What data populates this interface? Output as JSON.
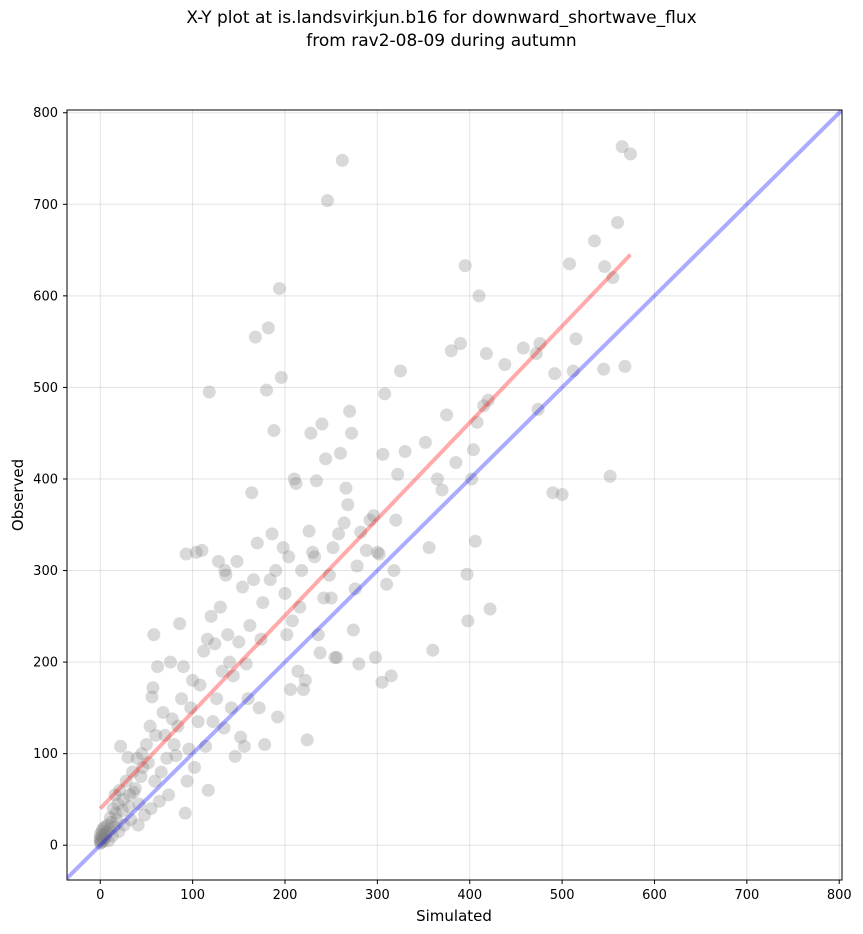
{
  "chart_data": {
    "type": "scatter",
    "title_line1": "X-Y plot at is.landsvirkjun.b16 for downward_shortwave_flux",
    "title_line2": "from rav2-08-09 during autumn",
    "xlabel": "Simulated",
    "ylabel": "Observed",
    "xlim": [
      -36,
      803
    ],
    "ylim": [
      -38,
      803
    ],
    "xticks": [
      0,
      100,
      200,
      300,
      400,
      500,
      600,
      700,
      800
    ],
    "yticks": [
      0,
      100,
      200,
      300,
      400,
      500,
      600,
      700,
      800
    ],
    "grid": true,
    "identity_line": {
      "color": "#0000ff",
      "from": [
        -36,
        -36
      ],
      "to": [
        803,
        803
      ]
    },
    "fit_line": {
      "color": "#ff0000",
      "from": [
        0,
        40
      ],
      "to": [
        574,
        645
      ]
    },
    "colors": {
      "point": "#808080",
      "identity": "#0000ff",
      "fit": "#ff0000"
    },
    "points": [
      [
        0,
        2
      ],
      [
        0,
        5
      ],
      [
        0,
        8
      ],
      [
        0,
        12
      ],
      [
        1,
        3
      ],
      [
        1,
        6
      ],
      [
        2,
        10
      ],
      [
        2,
        15
      ],
      [
        3,
        4
      ],
      [
        3,
        18
      ],
      [
        4,
        7
      ],
      [
        5,
        12
      ],
      [
        5,
        20
      ],
      [
        6,
        9
      ],
      [
        7,
        14
      ],
      [
        8,
        22
      ],
      [
        9,
        5
      ],
      [
        10,
        17
      ],
      [
        11,
        30
      ],
      [
        12,
        25
      ],
      [
        13,
        10
      ],
      [
        14,
        40
      ],
      [
        15,
        20
      ],
      [
        16,
        55
      ],
      [
        17,
        35
      ],
      [
        18,
        28
      ],
      [
        19,
        45
      ],
      [
        20,
        15
      ],
      [
        21,
        60
      ],
      [
        22,
        108
      ],
      [
        24,
        38
      ],
      [
        25,
        50
      ],
      [
        26,
        22
      ],
      [
        28,
        70
      ],
      [
        30,
        96
      ],
      [
        31,
        42
      ],
      [
        32,
        55
      ],
      [
        33,
        28
      ],
      [
        35,
        80
      ],
      [
        36,
        58
      ],
      [
        38,
        62
      ],
      [
        40,
        95
      ],
      [
        41,
        22
      ],
      [
        42,
        45
      ],
      [
        44,
        75
      ],
      [
        45,
        100
      ],
      [
        46,
        85
      ],
      [
        48,
        33
      ],
      [
        50,
        110
      ],
      [
        52,
        90
      ],
      [
        54,
        130
      ],
      [
        55,
        40
      ],
      [
        56,
        162
      ],
      [
        57,
        172
      ],
      [
        58,
        230
      ],
      [
        59,
        70
      ],
      [
        60,
        120
      ],
      [
        62,
        195
      ],
      [
        64,
        48
      ],
      [
        66,
        80
      ],
      [
        68,
        145
      ],
      [
        70,
        120
      ],
      [
        72,
        95
      ],
      [
        74,
        55
      ],
      [
        76,
        200
      ],
      [
        78,
        138
      ],
      [
        80,
        110
      ],
      [
        82,
        98
      ],
      [
        84,
        130
      ],
      [
        86,
        242
      ],
      [
        88,
        160
      ],
      [
        90,
        195
      ],
      [
        92,
        35
      ],
      [
        93,
        318
      ],
      [
        94,
        70
      ],
      [
        96,
        105
      ],
      [
        98,
        150
      ],
      [
        100,
        180
      ],
      [
        102,
        85
      ],
      [
        104,
        320
      ],
      [
        106,
        135
      ],
      [
        108,
        175
      ],
      [
        110,
        322
      ],
      [
        112,
        212
      ],
      [
        114,
        108
      ],
      [
        116,
        225
      ],
      [
        117,
        60
      ],
      [
        118,
        495
      ],
      [
        120,
        250
      ],
      [
        122,
        135
      ],
      [
        124,
        220
      ],
      [
        126,
        160
      ],
      [
        128,
        310
      ],
      [
        130,
        260
      ],
      [
        132,
        190
      ],
      [
        134,
        128
      ],
      [
        135,
        300
      ],
      [
        136,
        295
      ],
      [
        138,
        230
      ],
      [
        140,
        200
      ],
      [
        142,
        150
      ],
      [
        144,
        185
      ],
      [
        146,
        97
      ],
      [
        148,
        310
      ],
      [
        150,
        222
      ],
      [
        152,
        118
      ],
      [
        154,
        282
      ],
      [
        156,
        108
      ],
      [
        158,
        198
      ],
      [
        160,
        160
      ],
      [
        162,
        240
      ],
      [
        164,
        385
      ],
      [
        166,
        290
      ],
      [
        168,
        555
      ],
      [
        170,
        330
      ],
      [
        172,
        150
      ],
      [
        174,
        225
      ],
      [
        176,
        265
      ],
      [
        178,
        110
      ],
      [
        180,
        497
      ],
      [
        182,
        565
      ],
      [
        184,
        290
      ],
      [
        186,
        340
      ],
      [
        188,
        453
      ],
      [
        190,
        300
      ],
      [
        192,
        140
      ],
      [
        194,
        608
      ],
      [
        196,
        511
      ],
      [
        198,
        325
      ],
      [
        200,
        275
      ],
      [
        202,
        230
      ],
      [
        204,
        315
      ],
      [
        206,
        170
      ],
      [
        208,
        245
      ],
      [
        210,
        400
      ],
      [
        212,
        395
      ],
      [
        214,
        190
      ],
      [
        216,
        260
      ],
      [
        218,
        300
      ],
      [
        220,
        170
      ],
      [
        222,
        180
      ],
      [
        224,
        115
      ],
      [
        226,
        343
      ],
      [
        228,
        450
      ],
      [
        230,
        320
      ],
      [
        232,
        315
      ],
      [
        234,
        398
      ],
      [
        236,
        230
      ],
      [
        238,
        210
      ],
      [
        240,
        460
      ],
      [
        242,
        270
      ],
      [
        244,
        422
      ],
      [
        246,
        704
      ],
      [
        248,
        295
      ],
      [
        250,
        270
      ],
      [
        252,
        325
      ],
      [
        254,
        205
      ],
      [
        256,
        205
      ],
      [
        258,
        340
      ],
      [
        260,
        428
      ],
      [
        262,
        748
      ],
      [
        264,
        352
      ],
      [
        266,
        390
      ],
      [
        268,
        372
      ],
      [
        270,
        474
      ],
      [
        272,
        450
      ],
      [
        274,
        235
      ],
      [
        276,
        280
      ],
      [
        278,
        305
      ],
      [
        280,
        198
      ],
      [
        282,
        342
      ],
      [
        288,
        322
      ],
      [
        292,
        355
      ],
      [
        296,
        360
      ],
      [
        298,
        205
      ],
      [
        300,
        320
      ],
      [
        302,
        318
      ],
      [
        305,
        178
      ],
      [
        306,
        427
      ],
      [
        308,
        493
      ],
      [
        310,
        285
      ],
      [
        315,
        185
      ],
      [
        318,
        300
      ],
      [
        320,
        355
      ],
      [
        322,
        405
      ],
      [
        325,
        518
      ],
      [
        330,
        430
      ],
      [
        352,
        440
      ],
      [
        356,
        325
      ],
      [
        360,
        213
      ],
      [
        365,
        400
      ],
      [
        370,
        388
      ],
      [
        375,
        470
      ],
      [
        380,
        540
      ],
      [
        385,
        418
      ],
      [
        390,
        548
      ],
      [
        395,
        633
      ],
      [
        397,
        296
      ],
      [
        398,
        245
      ],
      [
        402,
        400
      ],
      [
        404,
        432
      ],
      [
        406,
        332
      ],
      [
        408,
        462
      ],
      [
        410,
        600
      ],
      [
        415,
        480
      ],
      [
        418,
        537
      ],
      [
        420,
        486
      ],
      [
        422,
        258
      ],
      [
        438,
        525
      ],
      [
        458,
        543
      ],
      [
        472,
        537
      ],
      [
        474,
        476
      ],
      [
        476,
        548
      ],
      [
        490,
        385
      ],
      [
        492,
        515
      ],
      [
        500,
        383
      ],
      [
        508,
        635
      ],
      [
        512,
        518
      ],
      [
        515,
        553
      ],
      [
        535,
        660
      ],
      [
        545,
        520
      ],
      [
        546,
        632
      ],
      [
        552,
        403
      ],
      [
        555,
        620
      ],
      [
        560,
        680
      ],
      [
        565,
        763
      ],
      [
        568,
        523
      ],
      [
        574,
        755
      ]
    ]
  }
}
